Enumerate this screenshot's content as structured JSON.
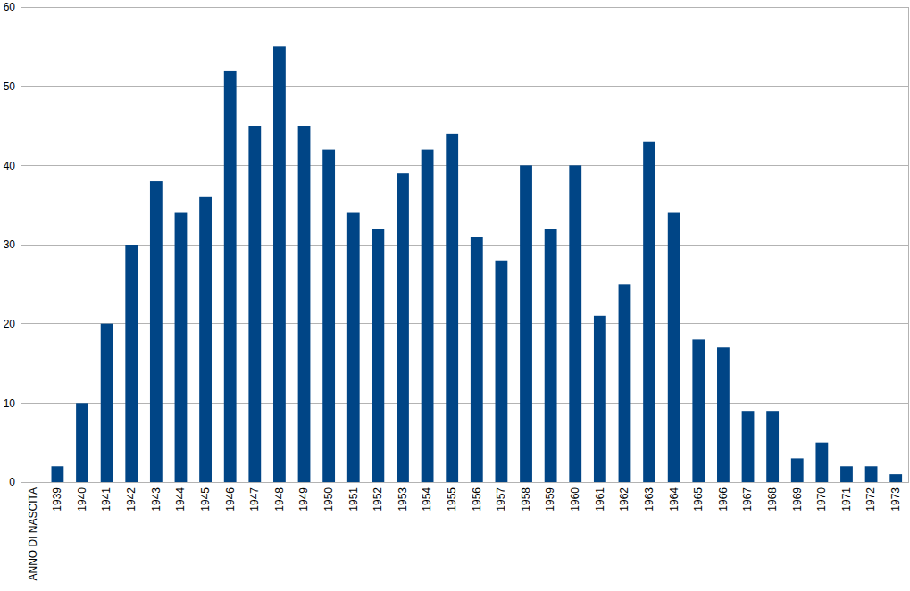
{
  "chart_data": {
    "type": "bar",
    "categories": [
      "ANNO DI NASCITA",
      "1939",
      "1940",
      "1941",
      "1942",
      "1943",
      "1944",
      "1945",
      "1946",
      "1947",
      "1948",
      "1949",
      "1950",
      "1951",
      "1952",
      "1953",
      "1954",
      "1955",
      "1956",
      "1957",
      "1958",
      "1959",
      "1960",
      "1961",
      "1962",
      "1963",
      "1964",
      "1965",
      "1966",
      "1967",
      "1968",
      "1969",
      "1970",
      "1971",
      "1972",
      "1973"
    ],
    "values": [
      null,
      2,
      10,
      20,
      30,
      38,
      34,
      36,
      52,
      45,
      55,
      45,
      42,
      34,
      32,
      39,
      42,
      44,
      31,
      28,
      40,
      32,
      40,
      21,
      25,
      43,
      34,
      18,
      17,
      9,
      9,
      3,
      5,
      2,
      2,
      1
    ],
    "color": "#004586",
    "ylim": [
      0,
      60
    ],
    "yticks": [
      0,
      10,
      20,
      30,
      40,
      50,
      60
    ],
    "grid": true
  }
}
